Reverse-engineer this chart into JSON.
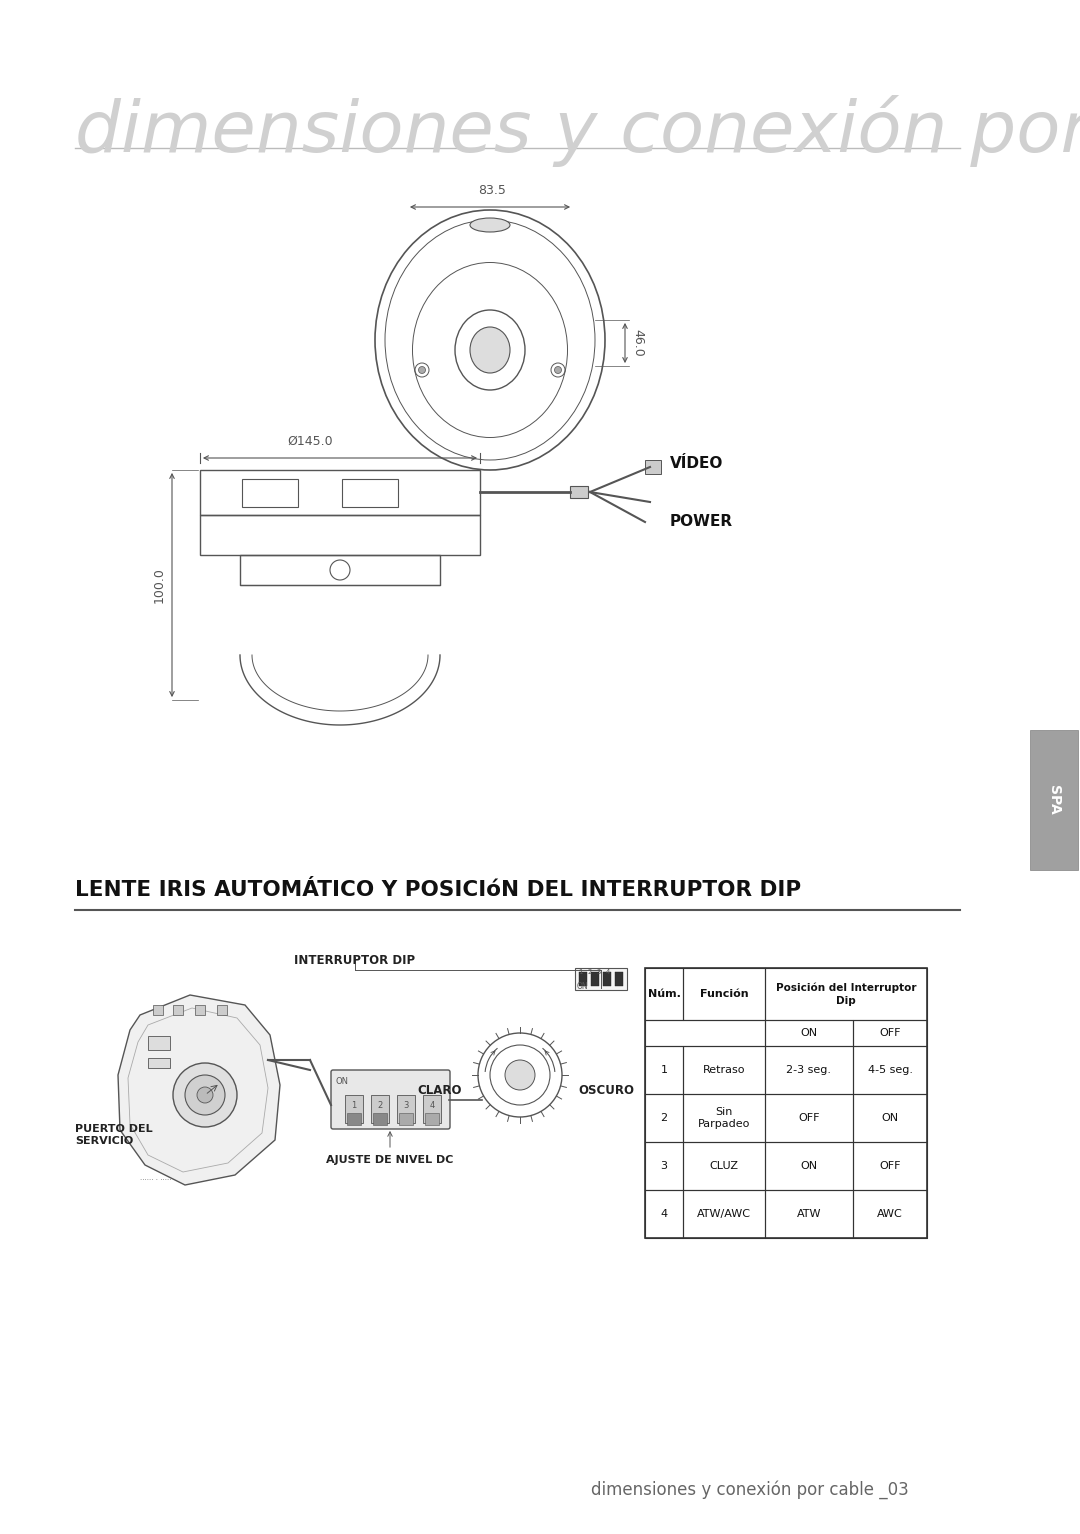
{
  "title": "dimensiones y conexión por cable",
  "section_title": "LENTE IRIS AUTOMÁTICO Y POSICIóN DEL INTERRUPTOR DIP",
  "dim_top_width": "83.5",
  "dim_side_height": "46.0",
  "dim_front_width": "Ø145.0",
  "dim_front_height": "100.0",
  "label_video": "VÍDEO",
  "label_power": "POWER",
  "label_interruptor": "INTERRUPTOR DIP",
  "label_claro": "CLARO",
  "label_oscuro": "OSCURO",
  "label_puerto": "PUERTO DEL\nSERVICIO",
  "label_ajuste": "AJUSTE DE NIVEL DC",
  "label_spa": "SPA",
  "footer": "dimensiones y conexión por cable _03",
  "table_rows": [
    [
      "1",
      "Retraso",
      "2-3 seg.",
      "4-5 seg."
    ],
    [
      "2",
      "Sin\nParpadeo",
      "OFF",
      "ON"
    ],
    [
      "3",
      "CLUZ",
      "ON",
      "OFF"
    ],
    [
      "4",
      "ATW/AWC",
      "ATW",
      "AWC"
    ]
  ],
  "bg_color": "#ffffff",
  "line_color": "#555555",
  "title_color": "#c8c8c8"
}
